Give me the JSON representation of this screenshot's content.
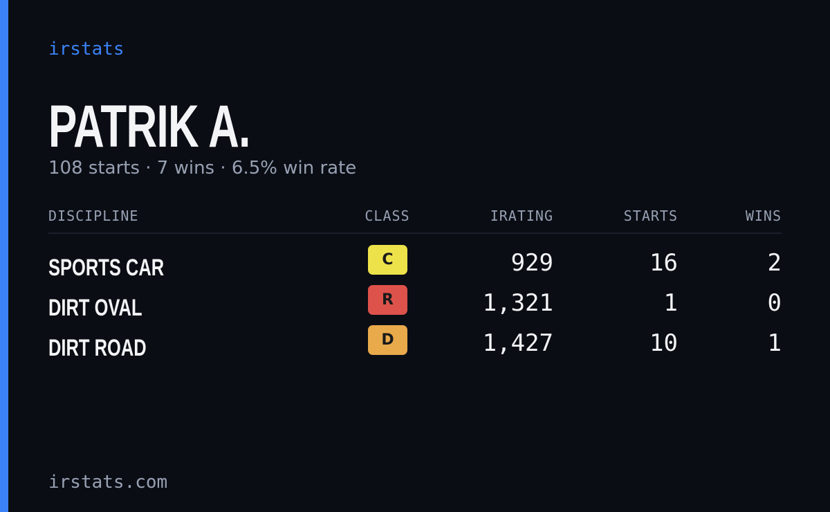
{
  "header": {
    "brand": "irstats",
    "name": "PATRIK A.",
    "summary": "108 starts · 7 wins · 6.5% win rate"
  },
  "table": {
    "columns": [
      "DISCIPLINE",
      "CLASS",
      "IRATING",
      "STARTS",
      "WINS"
    ],
    "rows": [
      [
        "SPORTS CAR",
        "C",
        "929",
        "16",
        "2"
      ],
      [
        "DIRT OVAL",
        "R",
        "1,321",
        "1",
        "0"
      ],
      [
        "DIRT ROAD",
        "D",
        "1,427",
        "10",
        "1"
      ]
    ],
    "class_colors": [
      "#ede24a",
      "#de524c",
      "#e9aa4c"
    ]
  },
  "footer": {
    "url": "irstats.com"
  }
}
